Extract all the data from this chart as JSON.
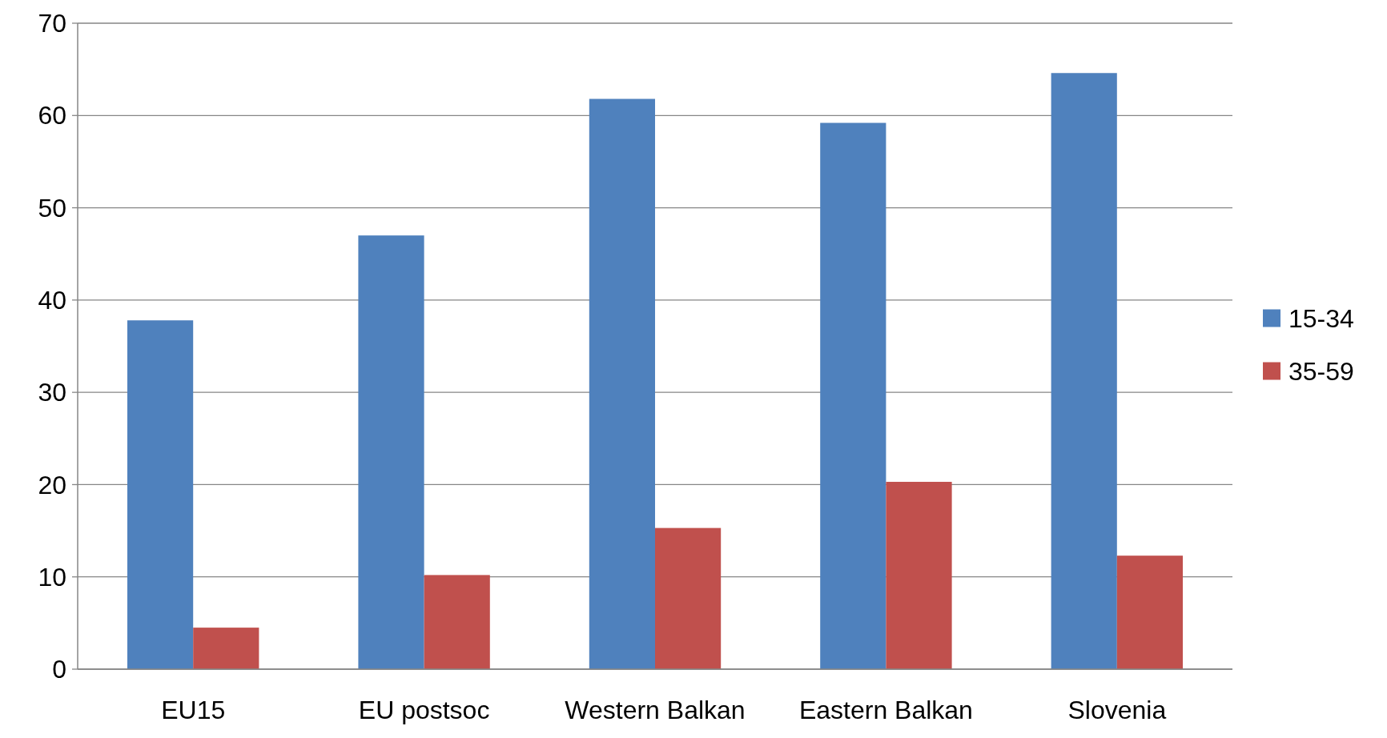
{
  "chart_data": {
    "type": "bar",
    "categories": [
      "EU15",
      "EU postsoc",
      "Western Balkan",
      "Eastern Balkan",
      "Slovenia"
    ],
    "series": [
      {
        "name": "15-34",
        "color": "#4f81bd",
        "values": [
          37.8,
          47.0,
          61.8,
          59.2,
          64.6
        ]
      },
      {
        "name": "35-59",
        "color": "#c0504d",
        "values": [
          4.5,
          10.2,
          15.3,
          20.3,
          12.3
        ]
      }
    ],
    "ylim": [
      0,
      70
    ],
    "yticks": [
      0,
      10,
      20,
      30,
      40,
      50,
      60,
      70
    ],
    "grid": "y",
    "legend": "right"
  }
}
